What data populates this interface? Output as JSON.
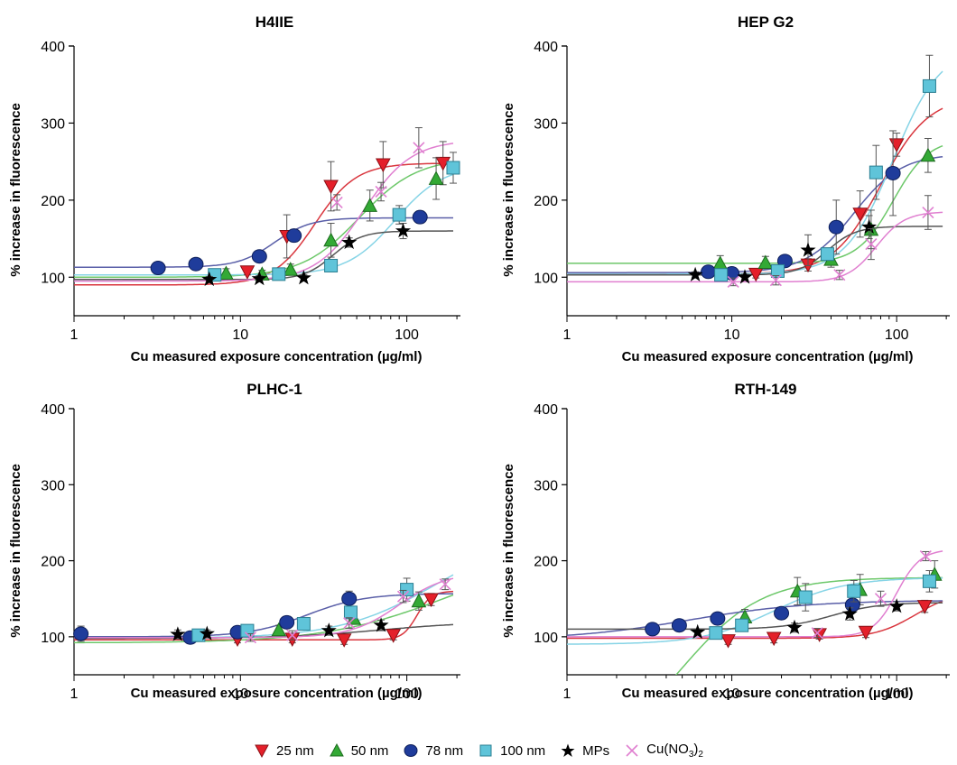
{
  "legend": {
    "items": [
      {
        "label": "25 nm",
        "marker": "triangle-down",
        "color": "#e4202a"
      },
      {
        "label": "50 nm",
        "marker": "triangle-up",
        "color": "#33a935"
      },
      {
        "label": "78 nm",
        "marker": "circle",
        "color": "#1f3c9b"
      },
      {
        "label": "100 nm",
        "marker": "square",
        "color": "#5fc4d9"
      },
      {
        "label": "MPs",
        "marker": "star",
        "color": "#000000"
      },
      {
        "label": "Cu(NO",
        "label_sub": "3",
        "label_end": ")",
        "label_sub2": "2",
        "marker": "x",
        "color": "#e07fd0"
      }
    ]
  },
  "chart_data": [
    {
      "type": "scatter",
      "title": "H4IIE",
      "xlabel": "Cu measured exposure concentration (µg/ml)",
      "ylabel": "% increase in fluorescence",
      "xscale": "log",
      "xlim": [
        1,
        210
      ],
      "ylim": [
        50,
        400
      ],
      "xticks": [
        1,
        10,
        100
      ],
      "xtick_labels": [
        "1",
        "10",
        "100"
      ],
      "yticks": [
        100,
        200,
        300,
        400
      ],
      "ytick_labels": [
        "100",
        "200",
        "300",
        "400"
      ],
      "grid": false,
      "series": [
        {
          "name": "25 nm",
          "points": [
            [
              11,
              107,
              4
            ],
            [
              19,
              153,
              28
            ],
            [
              35,
              218,
              32
            ],
            [
              72,
              246,
              30
            ],
            [
              165,
              248,
              28
            ]
          ],
          "fit": {
            "bottom": 90,
            "top": 248,
            "ec50": 28,
            "hill": 3.5
          }
        },
        {
          "name": "50 nm",
          "points": [
            [
              8.2,
              105,
              6
            ],
            [
              13.5,
              104,
              5
            ],
            [
              20,
              110,
              7
            ],
            [
              35,
              148,
              22
            ],
            [
              60,
              193,
              20
            ],
            [
              150,
              228,
              27
            ]
          ],
          "fit": {
            "bottom": 100,
            "top": 255,
            "ec50": 52,
            "hill": 2.5
          }
        },
        {
          "name": "78 nm",
          "points": [
            [
              3.2,
              112,
              4
            ],
            [
              5.4,
              117,
              4
            ],
            [
              13,
              127,
              5
            ],
            [
              21,
              154,
              8
            ],
            [
              120,
              178,
              8
            ]
          ],
          "fit": {
            "bottom": 113,
            "top": 177,
            "ec50": 16,
            "hill": 4
          }
        },
        {
          "name": "100 nm",
          "points": [
            [
              7,
              103,
              4
            ],
            [
              17,
              104,
              5
            ],
            [
              35,
              115,
              8
            ],
            [
              90,
              181,
              12
            ],
            [
              190,
              242,
              20
            ]
          ],
          "fit": {
            "bottom": 103,
            "top": 245,
            "ec50": 85,
            "hill": 3
          }
        },
        {
          "name": "MPs",
          "points": [
            [
              6.5,
              97,
              4
            ],
            [
              13,
              98,
              4
            ],
            [
              24,
              99,
              4
            ],
            [
              45,
              145,
              6
            ],
            [
              95,
              160,
              10
            ]
          ],
          "fit": {
            "bottom": 97,
            "top": 160,
            "ec50": 36,
            "hill": 5
          }
        },
        {
          "name": "Cu(NO3)2",
          "points": [
            [
              38,
              197,
              10
            ],
            [
              70,
              211,
              12
            ],
            [
              118,
              268,
              26
            ]
          ],
          "fit": {
            "bottom": 95,
            "top": 278,
            "ec50": 55,
            "hill": 3
          }
        }
      ]
    },
    {
      "type": "scatter",
      "title": "HEP G2",
      "xlabel": "Cu measured exposure concentration (µg/ml)",
      "ylabel": "% increase in fluorescence",
      "xscale": "log",
      "xlim": [
        1,
        210
      ],
      "ylim": [
        50,
        400
      ],
      "xticks": [
        1,
        10,
        100
      ],
      "xtick_labels": [
        "1",
        "10",
        "100"
      ],
      "yticks": [
        100,
        200,
        300,
        400
      ],
      "ytick_labels": [
        "100",
        "200",
        "300",
        "400"
      ],
      "grid": false,
      "series": [
        {
          "name": "25 nm",
          "points": [
            [
              14,
              104,
              5
            ],
            [
              29,
              116,
              8
            ],
            [
              60,
              182,
              30
            ],
            [
              100,
              272,
              15
            ]
          ],
          "fit": {
            "bottom": 104,
            "top": 335,
            "ec50": 80,
            "hill": 3
          }
        },
        {
          "name": "50 nm",
          "points": [
            [
              8.5,
              118,
              10
            ],
            [
              16,
              119,
              8
            ],
            [
              40,
              123,
              10
            ],
            [
              70,
              162,
              25
            ],
            [
              155,
              258,
              22
            ]
          ],
          "fit": {
            "bottom": 118,
            "top": 280,
            "ec50": 95,
            "hill": 4
          }
        },
        {
          "name": "78 nm",
          "points": [
            [
              7.2,
              107,
              5
            ],
            [
              10,
              105,
              6
            ],
            [
              21,
              121,
              7
            ],
            [
              43,
              165,
              35
            ],
            [
              95,
              235,
              55
            ]
          ],
          "fit": {
            "bottom": 106,
            "top": 260,
            "ec50": 55,
            "hill": 3
          }
        },
        {
          "name": "100 nm",
          "points": [
            [
              8.6,
              103,
              5
            ],
            [
              19,
              108,
              5
            ],
            [
              38,
              130,
              8
            ],
            [
              75,
              236,
              35
            ],
            [
              158,
              348,
              40
            ]
          ],
          "fit": {
            "bottom": 104,
            "top": 400,
            "ec50": 95,
            "hill": 3
          }
        },
        {
          "name": "MPs",
          "points": [
            [
              6,
              103,
              4
            ],
            [
              12,
              100,
              4
            ],
            [
              29,
              135,
              20
            ],
            [
              68,
              165,
              15
            ]
          ],
          "fit": {
            "bottom": 103,
            "top": 166,
            "ec50": 38,
            "hill": 5
          }
        },
        {
          "name": "Cu(NO3)2",
          "points": [
            [
              10.2,
              94,
              5
            ],
            [
              18.5,
              96,
              6
            ],
            [
              45,
              103,
              6
            ],
            [
              70,
              143,
              20
            ],
            [
              155,
              184,
              22
            ]
          ],
          "fit": {
            "bottom": 94,
            "top": 185,
            "ec50": 75,
            "hill": 5
          }
        }
      ]
    },
    {
      "type": "scatter",
      "title": "PLHC-1",
      "xlabel": "Cu measured exposure concentration (µg/ml)",
      "ylabel": "% increase in fluorescence",
      "xscale": "log",
      "xlim": [
        1,
        210
      ],
      "ylim": [
        50,
        400
      ],
      "xticks": [
        1,
        10,
        100
      ],
      "xtick_labels": [
        "1",
        "10",
        "100"
      ],
      "yticks": [
        100,
        200,
        300,
        400
      ],
      "ytick_labels": [
        "100",
        "200",
        "300",
        "400"
      ],
      "grid": false,
      "series": [
        {
          "name": "25 nm",
          "points": [
            [
              9.6,
              97,
              5
            ],
            [
              20.5,
              97,
              5
            ],
            [
              42,
              96,
              6
            ],
            [
              83,
              102,
              6
            ],
            [
              140,
              149,
              8
            ]
          ],
          "fit": {
            "bottom": 96,
            "top": 160,
            "ec50": 115,
            "hill": 10
          }
        },
        {
          "name": "50 nm",
          "points": [
            [
              17,
              109,
              6
            ],
            [
              48,
              124,
              7
            ],
            [
              118,
              147,
              12
            ]
          ],
          "fit": {
            "bottom": 92,
            "top": 210,
            "ec50": 170,
            "hill": 1.2
          }
        },
        {
          "name": "78 nm",
          "points": [
            [
              1.1,
              104,
              10
            ],
            [
              5,
              99,
              6
            ],
            [
              9.6,
              106,
              5
            ],
            [
              19,
              119,
              8
            ],
            [
              45,
              150,
              10
            ]
          ],
          "fit": {
            "bottom": 100,
            "top": 157,
            "ec50": 25,
            "hill": 2.5
          }
        },
        {
          "name": "100 nm",
          "points": [
            [
              5.6,
              102,
              5
            ],
            [
              11,
              108,
              6
            ],
            [
              24,
              117,
              7
            ],
            [
              46,
              132,
              8
            ],
            [
              100,
              162,
              15
            ]
          ],
          "fit": {
            "bottom": 98,
            "top": 240,
            "ec50": 150,
            "hill": 1.5
          }
        },
        {
          "name": "MPs",
          "points": [
            [
              4.2,
              103,
              6
            ],
            [
              6.3,
              104,
              5
            ],
            [
              34,
              108,
              6
            ],
            [
              70,
              115,
              7
            ]
          ],
          "fit": {
            "bottom": 98,
            "top": 120,
            "ec50": 70,
            "hill": 1.5
          }
        },
        {
          "name": "Cu(NO3)2",
          "points": [
            [
              11.5,
              99,
              5
            ],
            [
              20.5,
              102,
              6
            ],
            [
              45,
              118,
              7
            ],
            [
              95,
              153,
              8
            ],
            [
              170,
              169,
              7
            ]
          ],
          "fit": {
            "bottom": 99,
            "top": 185,
            "ec50": 90,
            "hill": 3
          }
        }
      ]
    },
    {
      "type": "scatter",
      "title": "RTH-149",
      "xlabel": "Cu measured exposure concentration (µg/ml)",
      "ylabel": "% increase in fluorescence",
      "xscale": "log",
      "xlim": [
        1,
        210
      ],
      "ylim": [
        50,
        400
      ],
      "xticks": [
        1,
        10,
        100
      ],
      "xtick_labels": [
        "1",
        "10",
        "100"
      ],
      "yticks": [
        100,
        200,
        300,
        400
      ],
      "ytick_labels": [
        "100",
        "200",
        "300",
        "400"
      ],
      "grid": false,
      "series": [
        {
          "name": "25 nm",
          "points": [
            [
              9.5,
              95,
              5
            ],
            [
              18,
              98,
              6
            ],
            [
              34,
              103,
              6
            ],
            [
              65,
              106,
              7
            ],
            [
              148,
              140,
              8
            ]
          ],
          "fit": {
            "bottom": 98,
            "top": 160,
            "ec50": 130,
            "hill": 3.5
          }
        },
        {
          "name": "50 nm",
          "points": [
            [
              12,
              126,
              10
            ],
            [
              25,
              160,
              18
            ],
            [
              60,
              162,
              20
            ],
            [
              170,
              182,
              18
            ]
          ],
          "fit": {
            "bottom": -60,
            "top": 178,
            "ec50": 5,
            "hill": 1.8
          }
        },
        {
          "name": "78 nm",
          "points": [
            [
              3.3,
              110,
              5
            ],
            [
              4.8,
              115,
              6
            ],
            [
              8.2,
              124,
              7
            ],
            [
              20,
              131,
              8
            ],
            [
              54,
              142,
              8
            ]
          ],
          "fit": {
            "bottom": 96,
            "top": 148,
            "ec50": 5.5,
            "hill": 1.2
          }
        },
        {
          "name": "100 nm",
          "points": [
            [
              8,
              105,
              6
            ],
            [
              11.5,
              115,
              8
            ],
            [
              28,
              152,
              18
            ],
            [
              55,
              160,
              14
            ],
            [
              158,
              173,
              14
            ]
          ],
          "fit": {
            "bottom": 90,
            "top": 178,
            "ec50": 18,
            "hill": 2
          }
        },
        {
          "name": "MPs",
          "points": [
            [
              6.2,
              106,
              4
            ],
            [
              24,
              112,
              6
            ],
            [
              52,
              130,
              8
            ],
            [
              100,
              140,
              6
            ]
          ],
          "fit": {
            "bottom": 110,
            "top": 145,
            "ec50": 40,
            "hill": 3
          }
        },
        {
          "name": "Cu(NO3)2",
          "points": [
            [
              33,
              105,
              6
            ],
            [
              80,
              150,
              10
            ],
            [
              150,
              206,
              6
            ]
          ],
          "fit": {
            "bottom": 100,
            "top": 215,
            "ec50": 100,
            "hill": 6
          }
        }
      ]
    }
  ]
}
